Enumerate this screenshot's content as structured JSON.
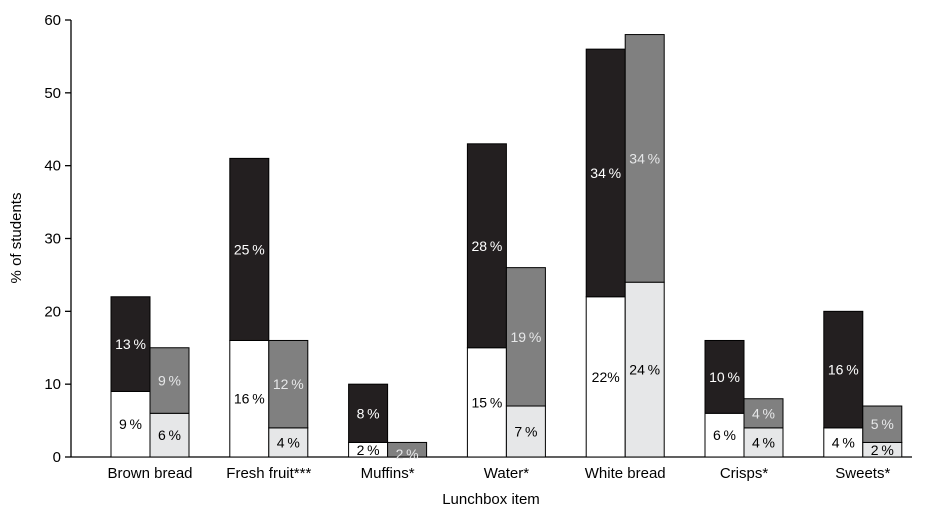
{
  "chart_data": {
    "type": "bar",
    "stacked": true,
    "grouped": true,
    "xlabel": "Lunchbox item",
    "ylabel": "% of students",
    "ylim": [
      0,
      60
    ],
    "yticks": [
      "0",
      "10",
      "20",
      "30",
      "40",
      "50",
      "60"
    ],
    "grid": false,
    "legend": "none",
    "colors": {
      "bar1_bottom": "#ffffff",
      "bar1_top": "#231f20",
      "bar2_bottom": "#e6e7e8",
      "bar2_top": "#808080"
    },
    "categories": [
      {
        "label": "Brown bread",
        "bars": [
          {
            "bottom": 9,
            "top": 13,
            "bottom_label": "9 %",
            "top_label": "13 %"
          },
          {
            "bottom": 6,
            "top": 9,
            "bottom_label": "6 %",
            "top_label": "9 %"
          }
        ]
      },
      {
        "label": "Fresh fruit***",
        "bars": [
          {
            "bottom": 16,
            "top": 25,
            "bottom_label": "16 %",
            "top_label": "25 %"
          },
          {
            "bottom": 4,
            "top": 12,
            "bottom_label": "4 %",
            "top_label": "12 %"
          }
        ]
      },
      {
        "label": "Muffins*",
        "bars": [
          {
            "bottom": 2,
            "top": 8,
            "bottom_label": "2 %",
            "top_label": "8 %"
          },
          {
            "bottom": 0,
            "top": 2,
            "bottom_label": "",
            "top_label": "2 %"
          }
        ]
      },
      {
        "label": "Water*",
        "bars": [
          {
            "bottom": 15,
            "top": 28,
            "bottom_label": "15 %",
            "top_label": "28 %"
          },
          {
            "bottom": 7,
            "top": 19,
            "bottom_label": "7 %",
            "top_label": "19 %"
          }
        ]
      },
      {
        "label": "White bread",
        "bars": [
          {
            "bottom": 22,
            "top": 34,
            "bottom_label": "22%",
            "top_label": "34 %"
          },
          {
            "bottom": 24,
            "top": 34,
            "bottom_label": "24 %",
            "top_label": "34 %"
          }
        ]
      },
      {
        "label": "Crisps*",
        "bars": [
          {
            "bottom": 6,
            "top": 10,
            "bottom_label": "6 %",
            "top_label": "10 %"
          },
          {
            "bottom": 4,
            "top": 4,
            "bottom_label": "4 %",
            "top_label": "4 %"
          }
        ]
      },
      {
        "label": "Sweets*",
        "bars": [
          {
            "bottom": 4,
            "top": 16,
            "bottom_label": "4 %",
            "top_label": "16 %"
          },
          {
            "bottom": 2,
            "top": 5,
            "bottom_label": "2 %",
            "top_label": "5 %"
          }
        ]
      }
    ]
  }
}
